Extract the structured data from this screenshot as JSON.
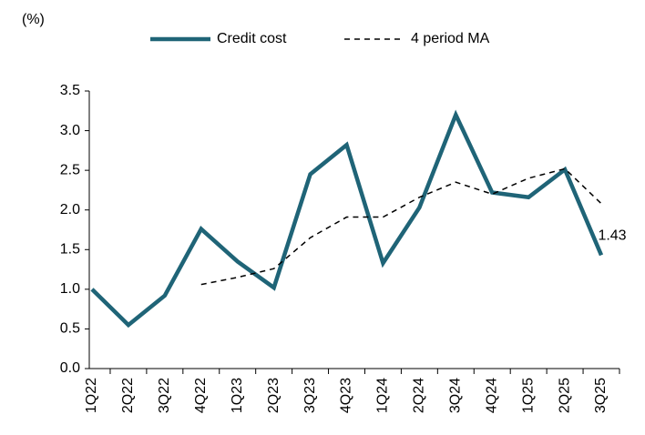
{
  "chart_data": {
    "type": "line",
    "y_unit": "(%)",
    "categories": [
      "1Q22",
      "2Q22",
      "3Q22",
      "4Q22",
      "1Q23",
      "2Q23",
      "3Q23",
      "4Q23",
      "1Q24",
      "2Q24",
      "3Q24",
      "4Q24",
      "1Q25",
      "2Q25",
      "3Q25"
    ],
    "series": [
      {
        "name": "Credit cost",
        "color": "#1f6477",
        "style": "solid",
        "values": [
          1.0,
          0.55,
          0.92,
          1.76,
          1.35,
          1.02,
          2.45,
          2.82,
          1.33,
          2.03,
          3.2,
          2.22,
          2.16,
          2.51,
          1.43
        ]
      },
      {
        "name": "4 period MA",
        "color": "#000000",
        "style": "dashed",
        "values": [
          null,
          null,
          null,
          1.06,
          1.15,
          1.26,
          1.65,
          1.91,
          1.91,
          2.16,
          2.35,
          2.2,
          2.4,
          2.52,
          2.08
        ]
      }
    ],
    "ylim": [
      0,
      3.5
    ],
    "yticks": [
      {
        "value": 0,
        "label": "0.0"
      },
      {
        "value": 0.5,
        "label": "0.5"
      },
      {
        "value": 1,
        "label": "1.0"
      },
      {
        "value": 1.5,
        "label": "1.5"
      },
      {
        "value": 2,
        "label": "2.0"
      },
      {
        "value": 2.5,
        "label": "2.5"
      },
      {
        "value": 3,
        "label": "3.0"
      },
      {
        "value": 3.5,
        "label": "3.5"
      }
    ],
    "legend": "top",
    "grid": false
  }
}
